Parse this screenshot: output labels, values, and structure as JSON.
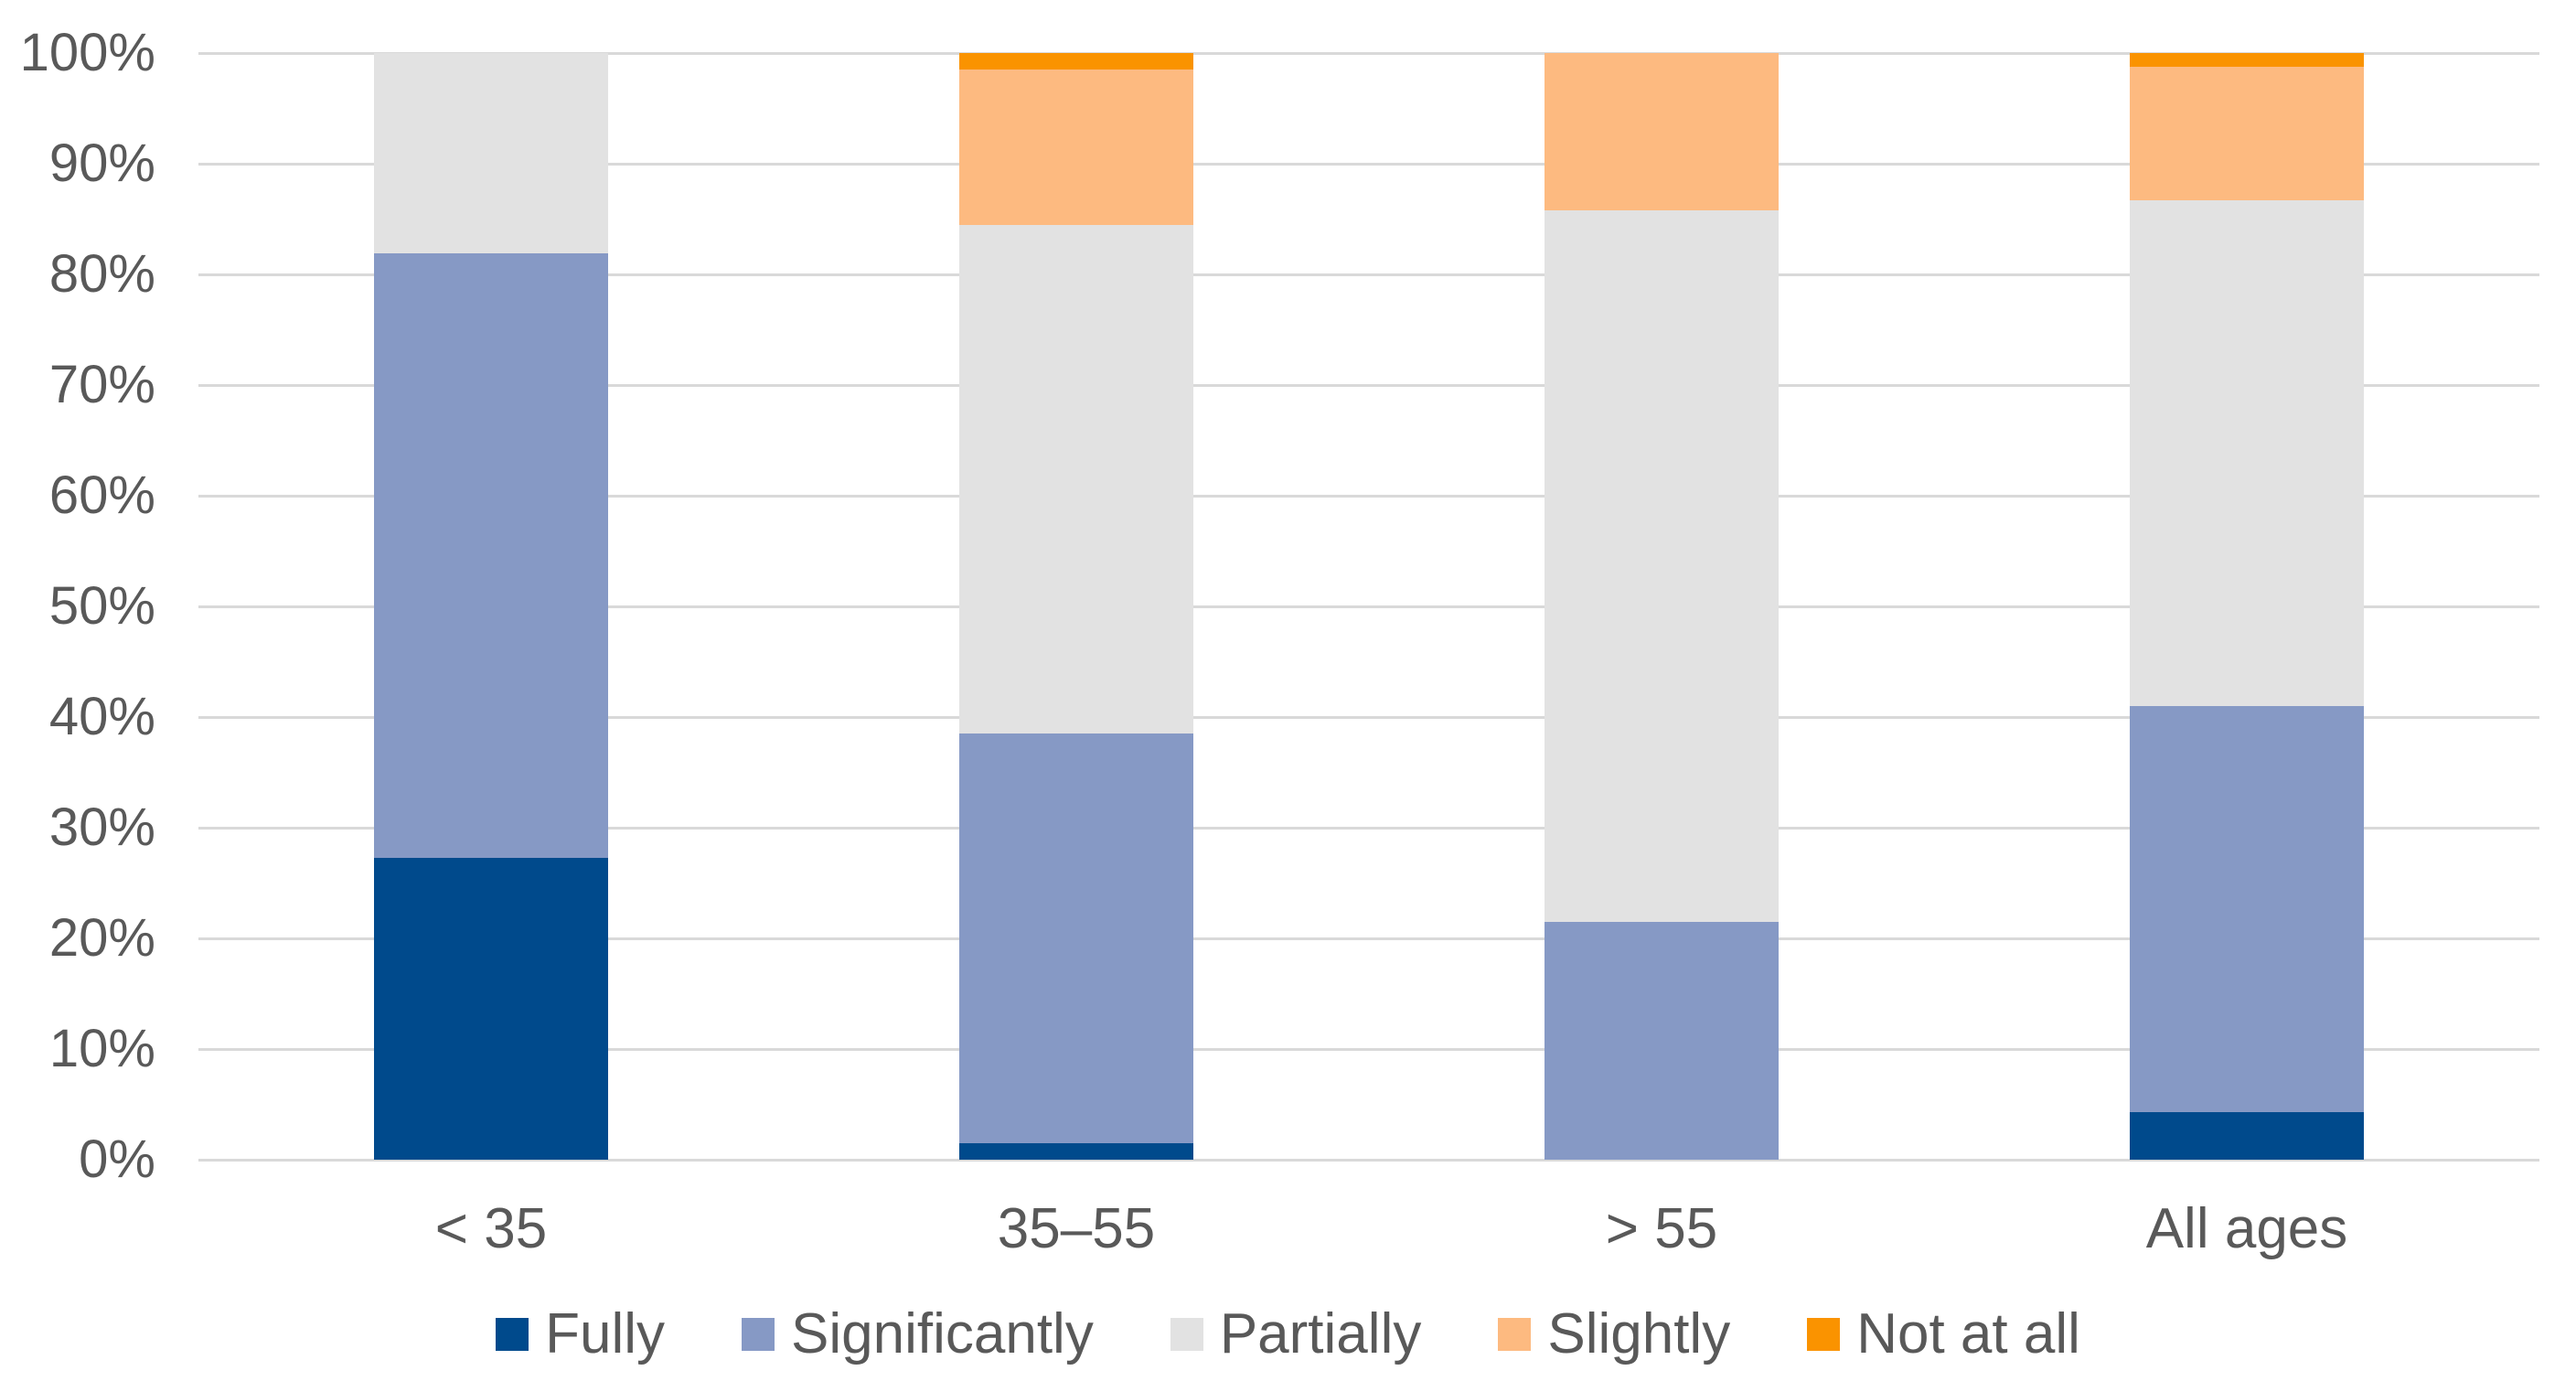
{
  "chart_data": {
    "type": "bar",
    "subtype": "stacked-100-percent-column",
    "title": "",
    "xlabel": "",
    "ylabel": "",
    "categories": [
      "< 35",
      "35–55",
      "> 55",
      "All ages"
    ],
    "series": [
      {
        "name": "Fully",
        "color": "#004A8C",
        "values": [
          27.3,
          1.5,
          0,
          4.3
        ]
      },
      {
        "name": "Significantly",
        "color": "#8699C5",
        "values": [
          54.6,
          37.0,
          21.5,
          36.7
        ]
      },
      {
        "name": "Partially",
        "color": "#E2E2E2",
        "values": [
          18.1,
          46.0,
          64.3,
          45.7
        ]
      },
      {
        "name": "Slightly",
        "color": "#FDBA80",
        "values": [
          0,
          14.0,
          14.2,
          12.1
        ]
      },
      {
        "name": "Not at all",
        "color": "#FA9300",
        "values": [
          0,
          1.5,
          0,
          1.2
        ]
      }
    ],
    "y_ticks": [
      "0%",
      "10%",
      "20%",
      "30%",
      "40%",
      "50%",
      "60%",
      "70%",
      "80%",
      "90%",
      "100%"
    ],
    "ylim": [
      0,
      100
    ],
    "grid": true,
    "legend_position": "bottom"
  },
  "colors": {
    "axis_text": "#595959",
    "gridline": "#D9D9D9",
    "background": "#FFFFFF"
  }
}
